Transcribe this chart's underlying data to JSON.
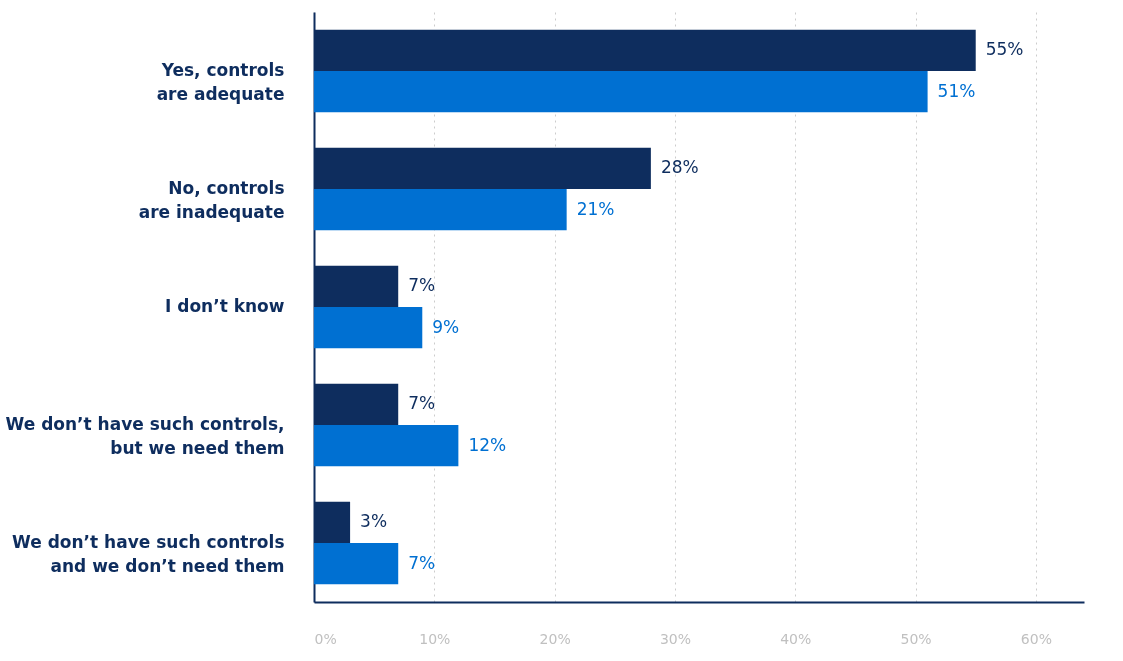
{
  "chart_data": {
    "type": "bar",
    "orientation": "horizontal",
    "categories": [
      "Yes, controls\nare adequate",
      "No, controls\nare inadequate",
      "I don’t know",
      "We don’t have such controls,\nbut we need them",
      "We don’t have such controls\nand we don’t need them"
    ],
    "series": [
      {
        "color": "#0e2d5e",
        "values": [
          55,
          28,
          7,
          7,
          3
        ],
        "value_labels": [
          "55%",
          "28%",
          "7%",
          "7%",
          "3%"
        ]
      },
      {
        "color": "#0070d2",
        "values": [
          51,
          21,
          9,
          12,
          7
        ],
        "value_labels": [
          "51%",
          "21%",
          "9%",
          "12%",
          "7%"
        ]
      }
    ],
    "xlim": [
      0,
      64
    ],
    "xticks": [
      {
        "value": 0,
        "label": "0%"
      },
      {
        "value": 10,
        "label": "10%"
      },
      {
        "value": 20,
        "label": "20%"
      },
      {
        "value": 30,
        "label": "30%"
      },
      {
        "value": 40,
        "label": "40%"
      },
      {
        "value": 50,
        "label": "50%"
      },
      {
        "value": 60,
        "label": "60%"
      }
    ],
    "grid": "x",
    "legend": false
  }
}
